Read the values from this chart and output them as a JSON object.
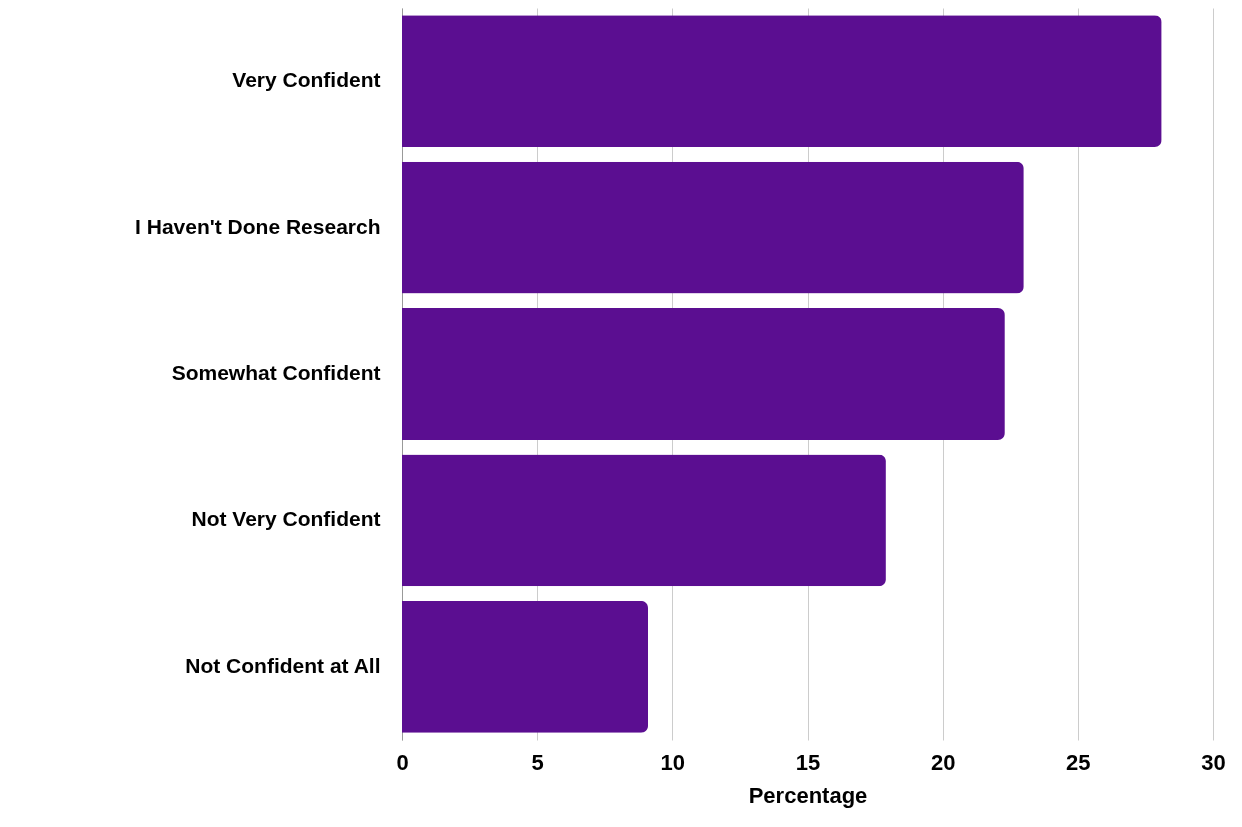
{
  "chart_data": {
    "type": "bar",
    "orientation": "horizontal",
    "categories": [
      "Very Confident",
      "I Haven't Done Research",
      "Somewhat Confident",
      "Not Very Confident",
      "Not Confident at All"
    ],
    "values": [
      28.1,
      23,
      22.3,
      17.9,
      9.1
    ],
    "color": "#5b0e91",
    "xlabel": "Percentage",
    "xlim": [
      0,
      30
    ],
    "xticks": [
      0,
      5,
      10,
      15,
      20,
      25,
      30
    ],
    "grid": "x"
  }
}
